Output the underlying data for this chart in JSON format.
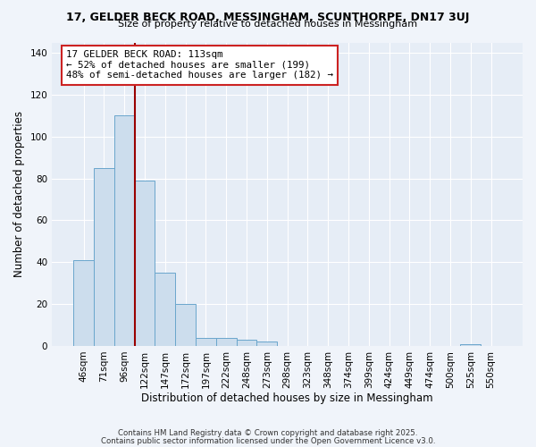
{
  "title": "17, GELDER BECK ROAD, MESSINGHAM, SCUNTHORPE, DN17 3UJ",
  "subtitle": "Size of property relative to detached houses in Messingham",
  "xlabel": "Distribution of detached houses by size in Messingham",
  "ylabel": "Number of detached properties",
  "bin_labels": [
    "46sqm",
    "71sqm",
    "96sqm",
    "122sqm",
    "147sqm",
    "172sqm",
    "197sqm",
    "222sqm",
    "248sqm",
    "273sqm",
    "298sqm",
    "323sqm",
    "348sqm",
    "374sqm",
    "399sqm",
    "424sqm",
    "449sqm",
    "474sqm",
    "500sqm",
    "525sqm",
    "550sqm"
  ],
  "bar_heights": [
    41,
    85,
    110,
    79,
    35,
    20,
    4,
    4,
    3,
    2,
    0,
    0,
    0,
    0,
    0,
    0,
    0,
    0,
    0,
    1,
    0
  ],
  "bar_color": "#ccdded",
  "bar_edge_color": "#6aa6cc",
  "ylim": [
    0,
    145
  ],
  "yticks": [
    0,
    20,
    40,
    60,
    80,
    100,
    120,
    140
  ],
  "property_line_color": "#990000",
  "annotation_text": "17 GELDER BECK ROAD: 113sqm\n← 52% of detached houses are smaller (199)\n48% of semi-detached houses are larger (182) →",
  "footer1": "Contains HM Land Registry data © Crown copyright and database right 2025.",
  "footer2": "Contains public sector information licensed under the Open Government Licence v3.0.",
  "bg_color": "#f0f4fa",
  "plot_bg_color": "#e6edf6"
}
